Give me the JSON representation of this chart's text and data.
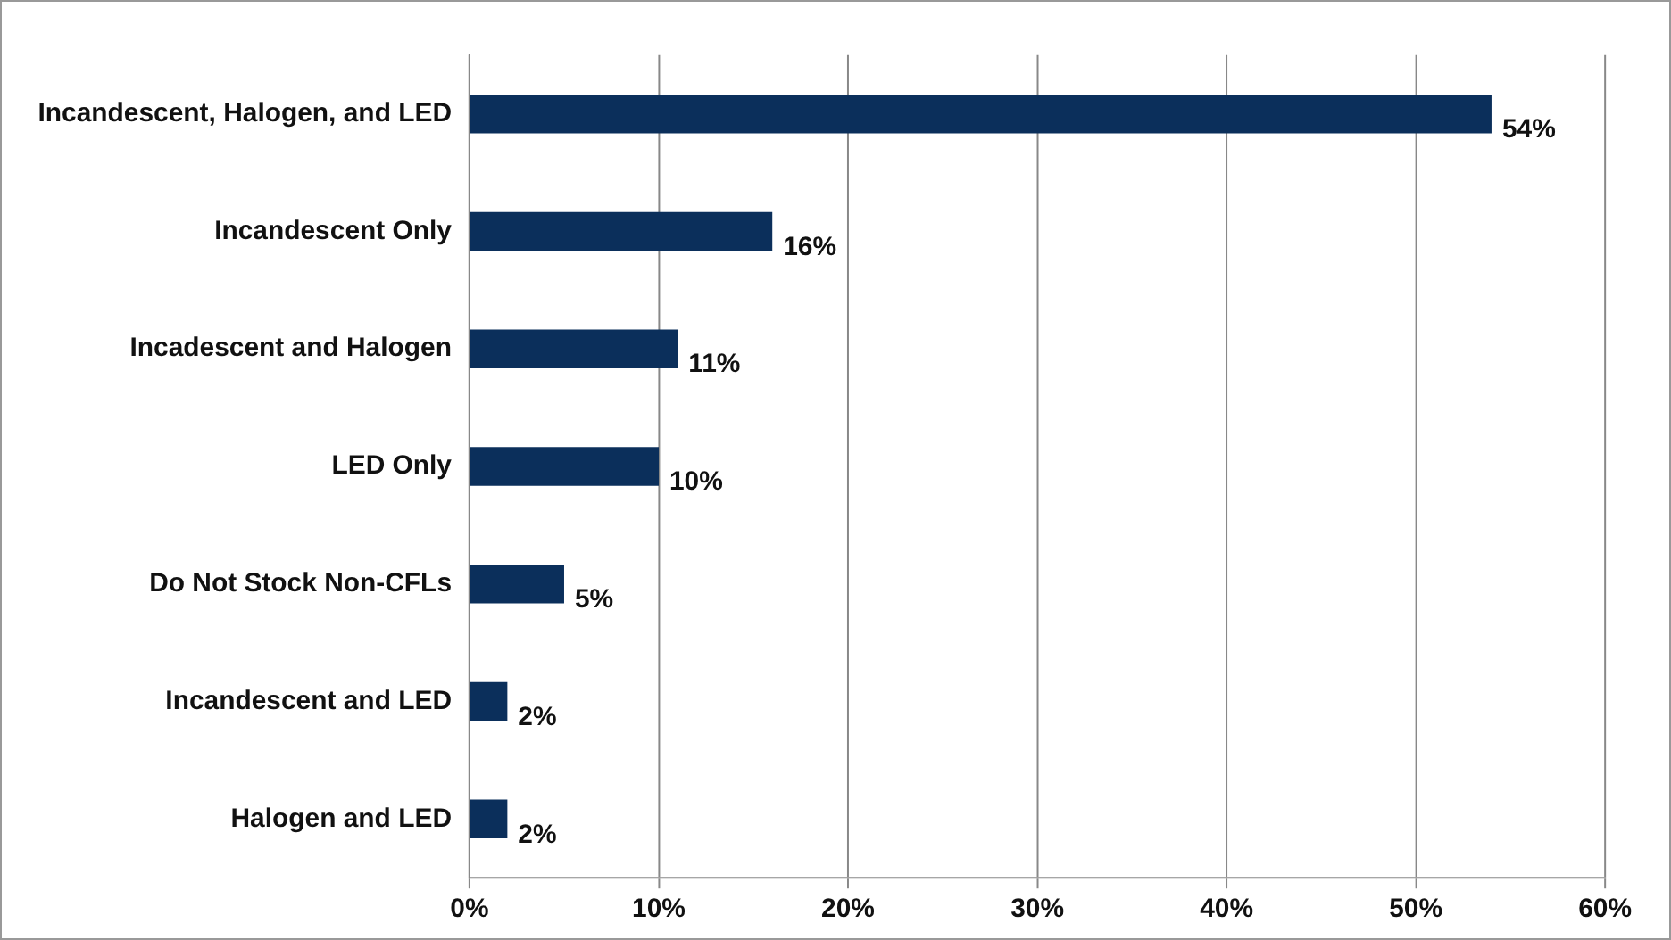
{
  "chart_data": {
    "type": "bar",
    "orientation": "horizontal",
    "categories": [
      "Incandescent, Halogen, and LED",
      "Incandescent Only",
      "Incadescent and Halogen",
      "LED Only",
      "Do Not Stock Non-CFLs",
      "Incandescent and LED",
      "Halogen and LED"
    ],
    "values": [
      54,
      16,
      11,
      10,
      5,
      2,
      2
    ],
    "value_labels": [
      "54%",
      "16%",
      "11%",
      "10%",
      "5%",
      "2%",
      "2%"
    ],
    "color": "#0b2f5b",
    "xlim": [
      0,
      60
    ],
    "xticks": [
      {
        "value": 0,
        "label": "0%"
      },
      {
        "value": 10,
        "label": "10%"
      },
      {
        "value": 20,
        "label": "20%"
      },
      {
        "value": 30,
        "label": "30%"
      },
      {
        "value": 40,
        "label": "40%"
      },
      {
        "value": 50,
        "label": "50%"
      },
      {
        "value": 60,
        "label": "60%"
      }
    ],
    "grid": "x"
  }
}
